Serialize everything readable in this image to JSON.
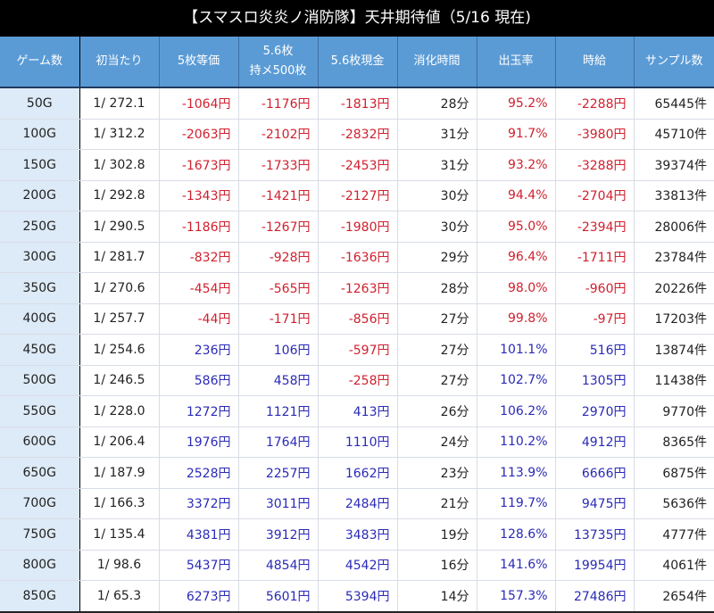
{
  "title": "【スマスロ炎炎ノ消防隊】天井期待値（5/16 現在)",
  "headers": [
    "ゲーム数",
    "初当たり",
    "5枚等価",
    "5.6枚\n持メ500枚",
    "5.6枚現金",
    "消化時間",
    "出玉率",
    "時給",
    "サンプル数"
  ],
  "header_lines": {
    "col3_line1": "5.6枚",
    "col3_line2": "持メ500枚"
  },
  "colors": {
    "header_bg": "#5b9bd5",
    "game_col_bg": "#ddeaf7",
    "negative": "#d0202e",
    "positive": "#2a2ab8"
  },
  "rows": [
    {
      "game": "50G",
      "hit": "1/ 272.1",
      "eq5": "-1064円",
      "m56": "-1176円",
      "c56": "-1813円",
      "time": "28分",
      "rate": "95.2%",
      "wage": "-2288円",
      "samples": "65445件"
    },
    {
      "game": "100G",
      "hit": "1/ 312.2",
      "eq5": "-2063円",
      "m56": "-2102円",
      "c56": "-2832円",
      "time": "31分",
      "rate": "91.7%",
      "wage": "-3980円",
      "samples": "45710件"
    },
    {
      "game": "150G",
      "hit": "1/ 302.8",
      "eq5": "-1673円",
      "m56": "-1733円",
      "c56": "-2453円",
      "time": "31分",
      "rate": "93.2%",
      "wage": "-3288円",
      "samples": "39374件"
    },
    {
      "game": "200G",
      "hit": "1/ 292.8",
      "eq5": "-1343円",
      "m56": "-1421円",
      "c56": "-2127円",
      "time": "30分",
      "rate": "94.4%",
      "wage": "-2704円",
      "samples": "33813件"
    },
    {
      "game": "250G",
      "hit": "1/ 290.5",
      "eq5": "-1186円",
      "m56": "-1267円",
      "c56": "-1980円",
      "time": "30分",
      "rate": "95.0%",
      "wage": "-2394円",
      "samples": "28006件"
    },
    {
      "game": "300G",
      "hit": "1/ 281.7",
      "eq5": "-832円",
      "m56": "-928円",
      "c56": "-1636円",
      "time": "29分",
      "rate": "96.4%",
      "wage": "-1711円",
      "samples": "23784件"
    },
    {
      "game": "350G",
      "hit": "1/ 270.6",
      "eq5": "-454円",
      "m56": "-565円",
      "c56": "-1263円",
      "time": "28分",
      "rate": "98.0%",
      "wage": "-960円",
      "samples": "20226件"
    },
    {
      "game": "400G",
      "hit": "1/ 257.7",
      "eq5": "-44円",
      "m56": "-171円",
      "c56": "-856円",
      "time": "27分",
      "rate": "99.8%",
      "wage": "-97円",
      "samples": "17203件"
    },
    {
      "game": "450G",
      "hit": "1/ 254.6",
      "eq5": "236円",
      "m56": "106円",
      "c56": "-597円",
      "time": "27分",
      "rate": "101.1%",
      "wage": "516円",
      "samples": "13874件"
    },
    {
      "game": "500G",
      "hit": "1/ 246.5",
      "eq5": "586円",
      "m56": "458円",
      "c56": "-258円",
      "time": "27分",
      "rate": "102.7%",
      "wage": "1305円",
      "samples": "11438件"
    },
    {
      "game": "550G",
      "hit": "1/ 228.0",
      "eq5": "1272円",
      "m56": "1121円",
      "c56": "413円",
      "time": "26分",
      "rate": "106.2%",
      "wage": "2970円",
      "samples": "9770件"
    },
    {
      "game": "600G",
      "hit": "1/ 206.4",
      "eq5": "1976円",
      "m56": "1764円",
      "c56": "1110円",
      "time": "24分",
      "rate": "110.2%",
      "wage": "4912円",
      "samples": "8365件"
    },
    {
      "game": "650G",
      "hit": "1/ 187.9",
      "eq5": "2528円",
      "m56": "2257円",
      "c56": "1662円",
      "time": "23分",
      "rate": "113.9%",
      "wage": "6666円",
      "samples": "6875件"
    },
    {
      "game": "700G",
      "hit": "1/ 166.3",
      "eq5": "3372円",
      "m56": "3011円",
      "c56": "2484円",
      "time": "21分",
      "rate": "119.7%",
      "wage": "9475円",
      "samples": "5636件"
    },
    {
      "game": "750G",
      "hit": "1/ 135.4",
      "eq5": "4381円",
      "m56": "3912円",
      "c56": "3483円",
      "time": "19分",
      "rate": "128.6%",
      "wage": "13735円",
      "samples": "4777件"
    },
    {
      "game": "800G",
      "hit": "1/ 98.6",
      "eq5": "5437円",
      "m56": "4854円",
      "c56": "4542円",
      "time": "16分",
      "rate": "141.6%",
      "wage": "19954円",
      "samples": "4061件"
    },
    {
      "game": "850G",
      "hit": "1/ 65.3",
      "eq5": "6273円",
      "m56": "5601円",
      "c56": "5394円",
      "time": "14分",
      "rate": "157.3%",
      "wage": "27486円",
      "samples": "2654件"
    }
  ]
}
